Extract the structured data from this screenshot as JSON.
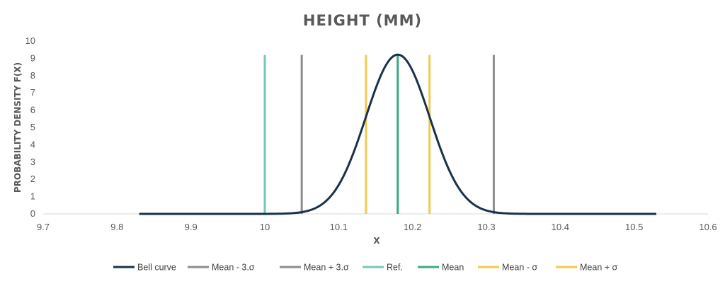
{
  "chart_data": {
    "type": "line",
    "title": "HEIGHT (MM)",
    "xlabel": "X",
    "ylabel": "PROBABILITY DENSITY F(X)",
    "xlim": [
      9.7,
      10.6
    ],
    "ylim": [
      0,
      10
    ],
    "x_ticks": [
      "9.7",
      "9.8",
      "9.9",
      "10",
      "10.1",
      "10.2",
      "10.3",
      "10.4",
      "10.5",
      "10.6"
    ],
    "y_ticks": [
      "0",
      "1",
      "2",
      "3",
      "4",
      "5",
      "6",
      "7",
      "8",
      "9",
      "10"
    ],
    "grid": false,
    "legend_position": "bottom",
    "curve": {
      "name": "Bell curve",
      "mean": 10.18,
      "sigma": 0.0433,
      "x_range": [
        9.83,
        10.53
      ],
      "color": "#17324a"
    },
    "vertical_lines": [
      {
        "name": "Mean - 3.σ",
        "x": 10.05,
        "y_top": 9.2,
        "color": "#8c8c8c"
      },
      {
        "name": "Mean + 3.σ",
        "x": 10.31,
        "y_top": 9.2,
        "color": "#8c8c8c"
      },
      {
        "name": "Ref.",
        "x": 10.0,
        "y_top": 9.2,
        "color": "#76c7b7"
      },
      {
        "name": "Mean",
        "x": 10.18,
        "y_top": 9.2,
        "color": "#3aa883"
      },
      {
        "name": "Mean - σ",
        "x": 10.137,
        "y_top": 9.2,
        "color": "#f2c94c"
      },
      {
        "name": "Mean + σ",
        "x": 10.223,
        "y_top": 9.2,
        "color": "#f2c94c"
      }
    ]
  }
}
